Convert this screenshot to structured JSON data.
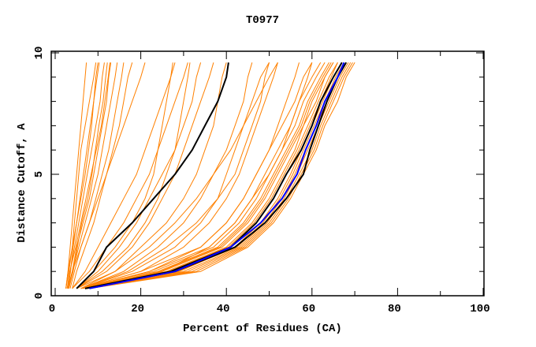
{
  "chart_data": {
    "type": "line",
    "title": "T0977",
    "xlabel": "Percent of Residues (CA)",
    "ylabel": "Distance Cutoff, A",
    "xlim": [
      0,
      100
    ],
    "ylim": [
      0,
      10
    ],
    "x_ticks": [
      "0",
      "20",
      "40",
      "60",
      "80",
      "100"
    ],
    "y_ticks": [
      "0",
      "5",
      "10"
    ],
    "grid": false,
    "colors": {
      "models": "#ff8000",
      "highlight": "#000000",
      "best": "#0000ff"
    },
    "y_levels": [
      0.3,
      1,
      2,
      3,
      4,
      5,
      6,
      7,
      8,
      9,
      9.6
    ],
    "series": [
      {
        "color": "models",
        "x": [
          2.5,
          3,
          3.5,
          4,
          4.5,
          5,
          5.5,
          6,
          6.5,
          7,
          7.3
        ]
      },
      {
        "color": "models",
        "x": [
          2.5,
          3.2,
          4,
          5,
          6,
          7,
          7.8,
          8.5,
          9,
          9.5,
          10
        ]
      },
      {
        "color": "models",
        "x": [
          3,
          3.5,
          4.5,
          5.5,
          6.5,
          7.5,
          8.5,
          9.5,
          10.5,
          11,
          11.5
        ]
      },
      {
        "color": "models",
        "x": [
          3,
          4,
          5,
          6.5,
          8,
          9,
          10,
          11,
          12,
          12.5,
          13
        ]
      },
      {
        "color": "models",
        "x": [
          3,
          4,
          5.5,
          7,
          8.5,
          10,
          11,
          12,
          13,
          14,
          14.5
        ]
      },
      {
        "color": "models",
        "x": [
          3.5,
          4.5,
          6,
          8,
          9.5,
          11,
          12.5,
          13.5,
          14.5,
          15.5,
          16
        ]
      },
      {
        "color": "models",
        "x": [
          2.5,
          3,
          4,
          4.5,
          5,
          5.5,
          6,
          7,
          8,
          9,
          9.5
        ]
      },
      {
        "color": "models",
        "x": [
          3,
          3.6,
          4.2,
          5,
          5.8,
          6.6,
          7.4,
          8.2,
          9,
          9.8,
          10.3
        ]
      },
      {
        "color": "models",
        "x": [
          4,
          5,
          7,
          9,
          10.5,
          12,
          13.5,
          15,
          16,
          17,
          18
        ]
      },
      {
        "color": "models",
        "x": [
          3,
          4,
          6,
          8,
          10,
          12,
          14,
          16,
          18,
          20,
          21
        ]
      },
      {
        "color": "models",
        "x": [
          2.8,
          3.4,
          4.8,
          6,
          7.2,
          8.4,
          9.6,
          10.8,
          11.6,
          12.4,
          12.8
        ]
      },
      {
        "color": "models",
        "x": [
          3.2,
          4.2,
          5.2,
          6.2,
          7.6,
          8.6,
          9.4,
          10.2,
          11.2,
          11.8,
          12.2
        ]
      },
      {
        "color": "models",
        "x": [
          4,
          7,
          10,
          13,
          16,
          19,
          21,
          23,
          25,
          27,
          28
        ]
      },
      {
        "color": "models",
        "x": [
          4,
          8,
          12,
          16,
          19,
          22,
          24,
          26,
          28,
          30,
          31
        ]
      },
      {
        "color": "models",
        "x": [
          5,
          10,
          15,
          19,
          22,
          25,
          28,
          30,
          32,
          33,
          34
        ]
      },
      {
        "color": "models",
        "x": [
          5,
          12,
          18,
          22,
          25,
          28,
          30,
          32,
          34,
          36,
          37
        ]
      },
      {
        "color": "models",
        "x": [
          5,
          14,
          20,
          26,
          30,
          33,
          35,
          37,
          38,
          39,
          40
        ]
      },
      {
        "color": "models",
        "x": [
          6,
          16,
          24,
          30,
          34,
          37,
          40,
          42,
          44,
          45,
          46
        ]
      },
      {
        "color": "models",
        "x": [
          6,
          18,
          28,
          34,
          38,
          40,
          42,
          44,
          46,
          48,
          50
        ]
      },
      {
        "color": "models",
        "x": [
          6,
          20,
          30,
          36,
          40,
          43,
          45,
          47,
          49,
          51,
          52
        ]
      },
      {
        "color": "models",
        "x": [
          5,
          9,
          14,
          18,
          21,
          23,
          24,
          25,
          26,
          27,
          27.5
        ]
      },
      {
        "color": "models",
        "x": [
          6,
          14,
          22,
          28,
          33,
          37,
          41,
          44,
          47,
          50,
          52
        ]
      },
      {
        "color": "models",
        "x": [
          7,
          22,
          34,
          40,
          44,
          47,
          50,
          52,
          54,
          56,
          57
        ]
      },
      {
        "color": "models",
        "x": [
          7,
          25,
          36,
          42,
          46,
          50,
          53,
          55,
          57,
          59,
          60
        ]
      },
      {
        "color": "models",
        "x": [
          5,
          11,
          17,
          21,
          24,
          26,
          28,
          29,
          30,
          31,
          31.5
        ]
      },
      {
        "color": "models",
        "x": [
          6,
          17,
          26,
          33,
          38,
          42,
          44,
          46,
          48,
          49,
          50
        ]
      },
      {
        "color": "models",
        "x": [
          8,
          30,
          43,
          49,
          53,
          56,
          58.5,
          61,
          63.5,
          66,
          68
        ]
      },
      {
        "color": "models",
        "x": [
          8,
          32,
          44,
          50,
          54,
          57,
          60,
          62,
          64.5,
          67,
          69
        ]
      },
      {
        "color": "models",
        "x": [
          8,
          34,
          45,
          51,
          55,
          58,
          61,
          63,
          66,
          68,
          70
        ]
      },
      {
        "color": "models",
        "x": [
          7,
          26,
          40,
          46,
          50,
          53,
          56,
          58,
          61,
          63,
          65
        ]
      },
      {
        "color": "models",
        "x": [
          7,
          24,
          38,
          44,
          48,
          51,
          54,
          57,
          59,
          62,
          64
        ]
      },
      {
        "color": "models",
        "x": [
          6,
          22,
          36,
          42,
          46,
          49,
          52,
          55,
          57,
          60,
          62
        ]
      },
      {
        "color": "models",
        "x": [
          6,
          20,
          34,
          40,
          44,
          47,
          50,
          53,
          56,
          58,
          60
        ]
      },
      {
        "color": "models",
        "x": [
          7,
          27,
          41,
          47,
          51,
          54,
          57,
          59.5,
          62,
          64.5,
          66
        ]
      },
      {
        "color": "models",
        "x": [
          7,
          29,
          42,
          48,
          52,
          55,
          57.5,
          60,
          62.5,
          65,
          67
        ]
      },
      {
        "color": "models",
        "x": [
          8,
          31,
          43.5,
          49.5,
          53.5,
          56.5,
          59,
          61.5,
          64,
          66.5,
          68.5
        ]
      },
      {
        "color": "models",
        "x": [
          6,
          23,
          37,
          43,
          47,
          50,
          53,
          56,
          58,
          61,
          63
        ]
      },
      {
        "color": "models",
        "x": [
          7,
          25,
          39,
          45,
          49,
          52,
          55,
          58,
          60,
          63,
          65
        ]
      },
      {
        "color": "models",
        "x": [
          8,
          33,
          44.5,
          50.5,
          54.5,
          57.5,
          60.5,
          62.5,
          65,
          67.5,
          69.5
        ]
      },
      {
        "color": "models",
        "x": [
          7,
          26.5,
          40.5,
          46.5,
          50.5,
          53.5,
          56.5,
          59,
          61.5,
          64,
          66
        ]
      },
      {
        "color": "models",
        "x": [
          7.5,
          28.5,
          42.5,
          48.5,
          52.5,
          55.5,
          58,
          60.5,
          63,
          65.5,
          67.5
        ]
      },
      {
        "color": "models",
        "x": [
          6.5,
          24.5,
          38.5,
          44.5,
          48.5,
          51.5,
          54.5,
          57.5,
          59.5,
          62.5,
          64.5
        ]
      },
      {
        "color": "highlight",
        "x": [
          5,
          9,
          12,
          18,
          23,
          28,
          32,
          35,
          38,
          40,
          40.5
        ]
      },
      {
        "color": "highlight",
        "x": [
          7,
          27,
          41,
          47,
          51,
          54,
          57.5,
          60,
          62,
          65,
          67
        ]
      },
      {
        "color": "highlight",
        "x": [
          7,
          28,
          42,
          49,
          54,
          58,
          59.5,
          61.5,
          63.5,
          66,
          68
        ]
      },
      {
        "color": "best",
        "x": [
          8,
          28,
          41,
          48,
          53,
          56.5,
          58.5,
          61,
          63,
          66,
          67.5
        ]
      }
    ]
  }
}
